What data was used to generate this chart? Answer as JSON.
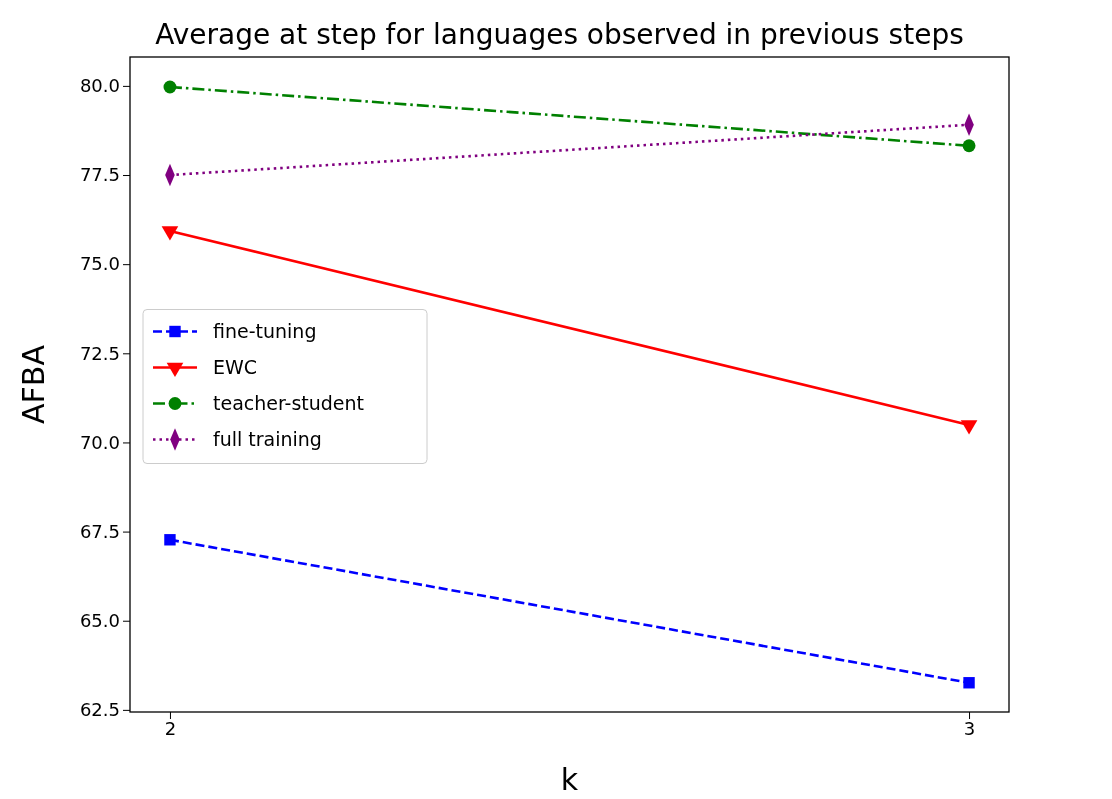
{
  "chart_data": {
    "type": "line",
    "title": "Average at step for languages observed in previous steps",
    "xlabel": "k",
    "ylabel": "AFBA",
    "x": [
      2,
      3
    ],
    "xlim": [
      1.95,
      3.05
    ],
    "xticks": [
      2,
      3
    ],
    "ylim": [
      62.44,
      80.81
    ],
    "yticks": [
      {
        "value": 62.5,
        "label": "62.5"
      },
      {
        "value": 65,
        "label": "65.0"
      },
      {
        "value": 67.5,
        "label": "67.5"
      },
      {
        "value": 70,
        "label": "70.0"
      },
      {
        "value": 72.5,
        "label": "72.5"
      },
      {
        "value": 75,
        "label": "75.0"
      },
      {
        "value": 77.5,
        "label": "77.5"
      },
      {
        "value": 80,
        "label": "80.0"
      }
    ],
    "grid": false,
    "legend": "center left",
    "series": [
      {
        "name": "fine-tuning",
        "color": "#0000ff",
        "values": [
          67.27,
          63.26
        ],
        "marker": "square",
        "line_style": "dashed"
      },
      {
        "name": "EWC",
        "color": "#ff0000",
        "values": [
          75.93,
          70.49
        ],
        "marker": "triangle-down",
        "line_style": "solid"
      },
      {
        "name": "teacher-student",
        "color": "#008000",
        "values": [
          79.97,
          78.32
        ],
        "marker": "circle",
        "line_style": "dashdot"
      },
      {
        "name": "full training",
        "color": "#800080",
        "values": [
          77.5,
          78.91
        ],
        "marker": "diamond",
        "line_style": "dotted"
      }
    ]
  }
}
